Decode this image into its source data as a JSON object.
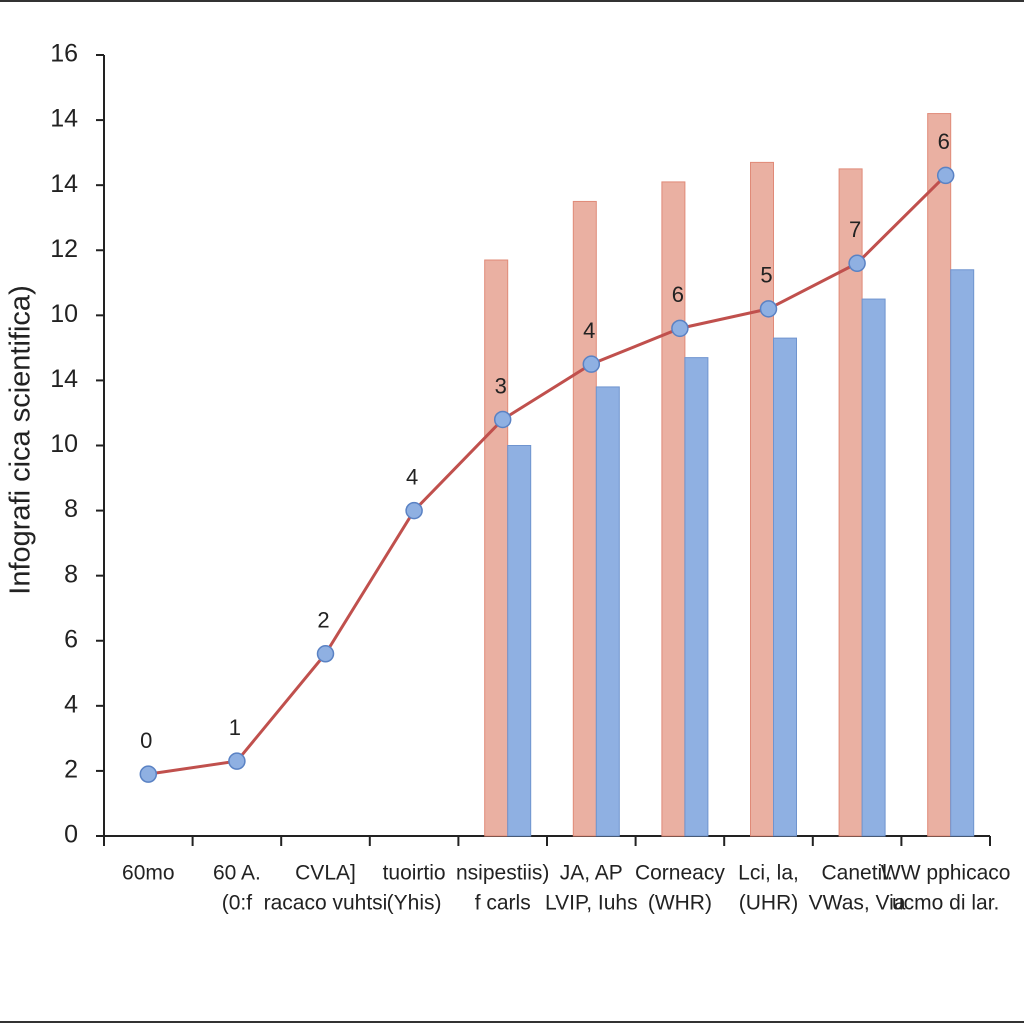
{
  "chart_data": {
    "type": "bar",
    "y_label": "Infografi cica scientifica)",
    "categories": [
      [
        "60mo"
      ],
      [
        "60 A.",
        "(0:f"
      ],
      [
        "CVLA]",
        "racaco vuhtsi"
      ],
      [
        "tuoirtio",
        "(Yhis)"
      ],
      [
        "nsipestiis)",
        "f carls"
      ],
      [
        "JA, AP",
        "LVIP, Iuhs"
      ],
      [
        "Corneacy",
        "(WHR)"
      ],
      [
        "Lci, la,",
        "(UHR)"
      ],
      [
        "Canetil.",
        "VWas, Via"
      ],
      [
        "WW pphicaco",
        "ucmo di lar."
      ]
    ],
    "series": [
      {
        "type": "bar",
        "color": "#eab0a2",
        "stroke": "#e08a78",
        "values": [
          null,
          null,
          null,
          null,
          17.7,
          19.5,
          20.1,
          20.7,
          20.5,
          22.2
        ]
      },
      {
        "type": "bar",
        "color": "#8fb0e2",
        "stroke": "#6f94cf",
        "values": [
          null,
          null,
          null,
          null,
          12.0,
          13.8,
          14.7,
          15.3,
          16.5,
          17.4
        ]
      },
      {
        "type": "line",
        "color": "#c0504d",
        "marker_color": "#8fb0e2",
        "values": [
          1.9,
          2.3,
          5.6,
          10.0,
          12.8,
          14.5,
          15.6,
          16.2,
          17.6,
          20.3
        ]
      }
    ],
    "annotations": [
      "0",
      "1",
      "2",
      "4",
      "3",
      "4",
      "6",
      "5",
      "7",
      "6"
    ],
    "ylim": [
      0,
      24
    ],
    "yticks": [
      0,
      2,
      4,
      6,
      8,
      {
        "value": 10,
        "label": "8"
      },
      {
        "value": 12,
        "label": "10"
      },
      14,
      {
        "value": 16,
        "label": "10"
      },
      {
        "value": 18,
        "label": "12"
      },
      {
        "value": 20,
        "label": "14"
      },
      {
        "value": 22,
        "label": "14"
      },
      {
        "value": 24,
        "label": "16"
      }
    ]
  }
}
